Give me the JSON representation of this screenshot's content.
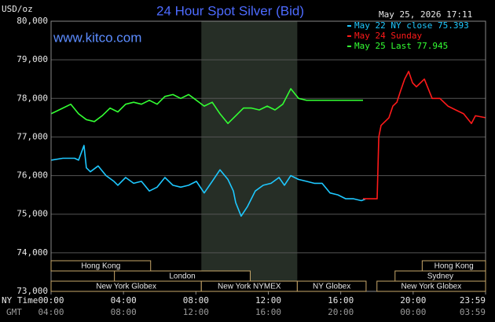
{
  "chart_data": {
    "type": "line",
    "title": "24 Hour Spot Silver (Bid)",
    "unit_label": "USD/oz",
    "timestamp": "May 25, 2026 17:11",
    "site": "www.kitco.com",
    "x_axis_label": "NY Time",
    "x2_axis_label": "GMT",
    "xlim": [
      0,
      24
    ],
    "xticks": [
      {
        "value": 0,
        "label": "00:00"
      },
      {
        "value": 4,
        "label": "04:00"
      },
      {
        "value": 8,
        "label": "08:00"
      },
      {
        "value": 12,
        "label": "12:00"
      },
      {
        "value": 16,
        "label": "16:00"
      },
      {
        "value": 20,
        "label": "20:00"
      },
      {
        "value": 24,
        "label": "23:59"
      }
    ],
    "x2tick_labels": [
      "04:00",
      "08:00",
      "12:00",
      "16:00",
      "20:00",
      "00:00",
      "03:59"
    ],
    "ylim": [
      73,
      80
    ],
    "yticks": [
      {
        "value": 80,
        "label": "80,000"
      },
      {
        "value": 79,
        "label": "79,000"
      },
      {
        "value": 78,
        "label": "78,000"
      },
      {
        "value": 77,
        "label": "77,000"
      },
      {
        "value": 76,
        "label": "76,000"
      },
      {
        "value": 75,
        "label": "75,000"
      },
      {
        "value": 74,
        "label": "74,000"
      },
      {
        "value": 73,
        "label": "73,000"
      }
    ],
    "grid": true,
    "shaded_range": [
      8.3,
      13.6
    ],
    "sessions": [
      [
        {
          "name": "Hong Kong",
          "start": 0,
          "end": 5.5
        },
        {
          "name": "Hong Kong",
          "start": 20.5,
          "end": 24
        }
      ],
      [
        {
          "name": "London",
          "start": 3.5,
          "end": 11
        },
        {
          "name": "Sydney",
          "start": 19,
          "end": 24
        }
      ],
      [
        {
          "name": "New York Globex",
          "start": 0,
          "end": 8.3
        },
        {
          "name": "New York NYMEX",
          "start": 8.3,
          "end": 13.6
        },
        {
          "name": "NY Globex",
          "start": 13.6,
          "end": 17.4
        },
        {
          "name": "New York Globex",
          "start": 18,
          "end": 24
        }
      ]
    ],
    "series": [
      {
        "name": "May 22 NY close 75.393",
        "color": "#1ec8ff",
        "x": [
          0,
          0.65,
          1.3,
          1.52,
          1.82,
          1.95,
          2.17,
          2.6,
          3.04,
          3.47,
          3.69,
          4.12,
          4.56,
          4.99,
          5.43,
          5.86,
          6.29,
          6.73,
          7.16,
          7.6,
          8.03,
          8.46,
          8.9,
          9.33,
          9.77,
          10.07,
          10.2,
          10.5,
          10.85,
          11.28,
          11.72,
          12.15,
          12.59,
          12.89,
          13.24,
          13.67,
          14.11,
          14.54,
          14.97,
          15.41,
          15.84,
          16.28,
          16.71,
          17.14,
          17.36
        ],
        "values": [
          76.4,
          76.45,
          76.45,
          76.4,
          76.78,
          76.2,
          76.1,
          76.25,
          76.0,
          75.85,
          75.75,
          75.95,
          75.8,
          75.85,
          75.6,
          75.7,
          75.95,
          75.75,
          75.7,
          75.75,
          75.85,
          75.55,
          75.85,
          76.15,
          75.9,
          75.6,
          75.3,
          74.95,
          75.2,
          75.6,
          75.75,
          75.8,
          75.95,
          75.75,
          76.0,
          75.9,
          75.85,
          75.8,
          75.8,
          75.55,
          75.5,
          75.4,
          75.4,
          75.35,
          75.39
        ]
      },
      {
        "name": "May 24 Sunday",
        "color": "#ff1a1a",
        "x": [
          17.23,
          18.01,
          18.1,
          18.23,
          18.66,
          18.88,
          19.1,
          19.31,
          19.53,
          19.75,
          19.97,
          20.18,
          20.62,
          21.05,
          21.48,
          21.92,
          22.35,
          22.79,
          23.22,
          23.44,
          24
        ],
        "values": [
          75.4,
          75.4,
          77.0,
          77.3,
          77.5,
          77.8,
          77.9,
          78.2,
          78.5,
          78.7,
          78.4,
          78.3,
          78.5,
          78.0,
          78.0,
          77.8,
          77.7,
          77.6,
          77.35,
          77.55,
          77.5
        ]
      },
      {
        "name": "May 25 Last 77.945",
        "color": "#33ff33",
        "x": [
          0,
          0.65,
          1.09,
          1.52,
          1.95,
          2.39,
          2.82,
          3.26,
          3.69,
          4.12,
          4.56,
          4.99,
          5.43,
          5.86,
          6.29,
          6.73,
          7.16,
          7.6,
          8.03,
          8.46,
          8.9,
          9.33,
          9.77,
          10.2,
          10.63,
          11.07,
          11.5,
          11.94,
          12.37,
          12.8,
          13.24,
          13.67,
          14.11,
          14.45,
          17.23
        ],
        "values": [
          77.6,
          77.75,
          77.85,
          77.6,
          77.45,
          77.4,
          77.55,
          77.75,
          77.65,
          77.85,
          77.9,
          77.85,
          77.95,
          77.85,
          78.05,
          78.1,
          78.0,
          78.1,
          77.95,
          77.8,
          77.9,
          77.6,
          77.35,
          77.55,
          77.75,
          77.75,
          77.7,
          77.8,
          77.7,
          77.85,
          78.25,
          78.0,
          77.95,
          77.95,
          77.95
        ]
      }
    ]
  }
}
